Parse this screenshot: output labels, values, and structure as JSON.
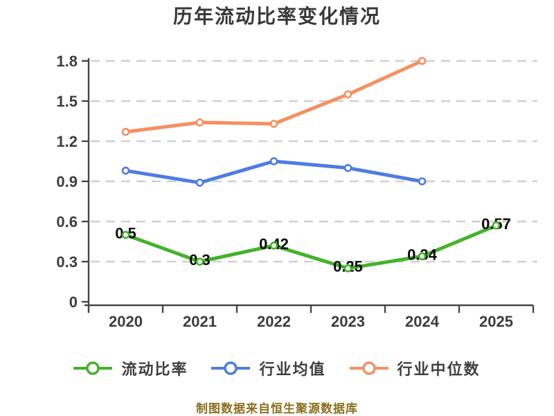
{
  "title": "历年流动比率变化情况",
  "caption": "制图数据来自恒生聚源数据库",
  "colors": {
    "title_text": "#383838",
    "axis": "#464646",
    "tick_label": "#3d3d3d",
    "grid_line": "#d0d0d0",
    "data_label": "#0a0a0a",
    "legend_text": "#3f3f3f",
    "caption_text": "#8a6f1c",
    "marker_fill": "#ffffff"
  },
  "chart_data": {
    "type": "line",
    "title": "历年流动比率变化情况",
    "categories": [
      "2020",
      "2021",
      "2022",
      "2023",
      "2024",
      "2025"
    ],
    "series": [
      {
        "key": "current-ratio",
        "name": "流动比率",
        "color": "#43b229",
        "values": [
          0.5,
          0.3,
          0.42,
          0.25,
          0.34,
          0.57
        ],
        "point_labels": [
          "0.5",
          "0.3",
          "0.42",
          "0.25",
          "0.34",
          "0.57"
        ]
      },
      {
        "key": "industry-mean",
        "name": "行业均值",
        "color": "#4d7ce2",
        "values": [
          0.98,
          0.89,
          1.05,
          1.0,
          0.9,
          null
        ],
        "point_labels": null
      },
      {
        "key": "industry-median",
        "name": "行业中位数",
        "color": "#f78f60",
        "values": [
          1.27,
          1.34,
          1.33,
          1.55,
          1.8,
          null
        ],
        "point_labels": null
      }
    ],
    "xlabel": "",
    "ylabel": "",
    "ylim": [
      0,
      1.8
    ],
    "yticks": [
      0,
      0.3,
      0.6,
      0.9,
      1.2,
      1.5,
      1.8
    ],
    "ytick_labels": [
      "0",
      "0.3",
      "0.6",
      "0.9",
      "1.2",
      "1.5",
      "1.8"
    ],
    "grid": "dashed horizontal",
    "legend_position": "bottom"
  }
}
